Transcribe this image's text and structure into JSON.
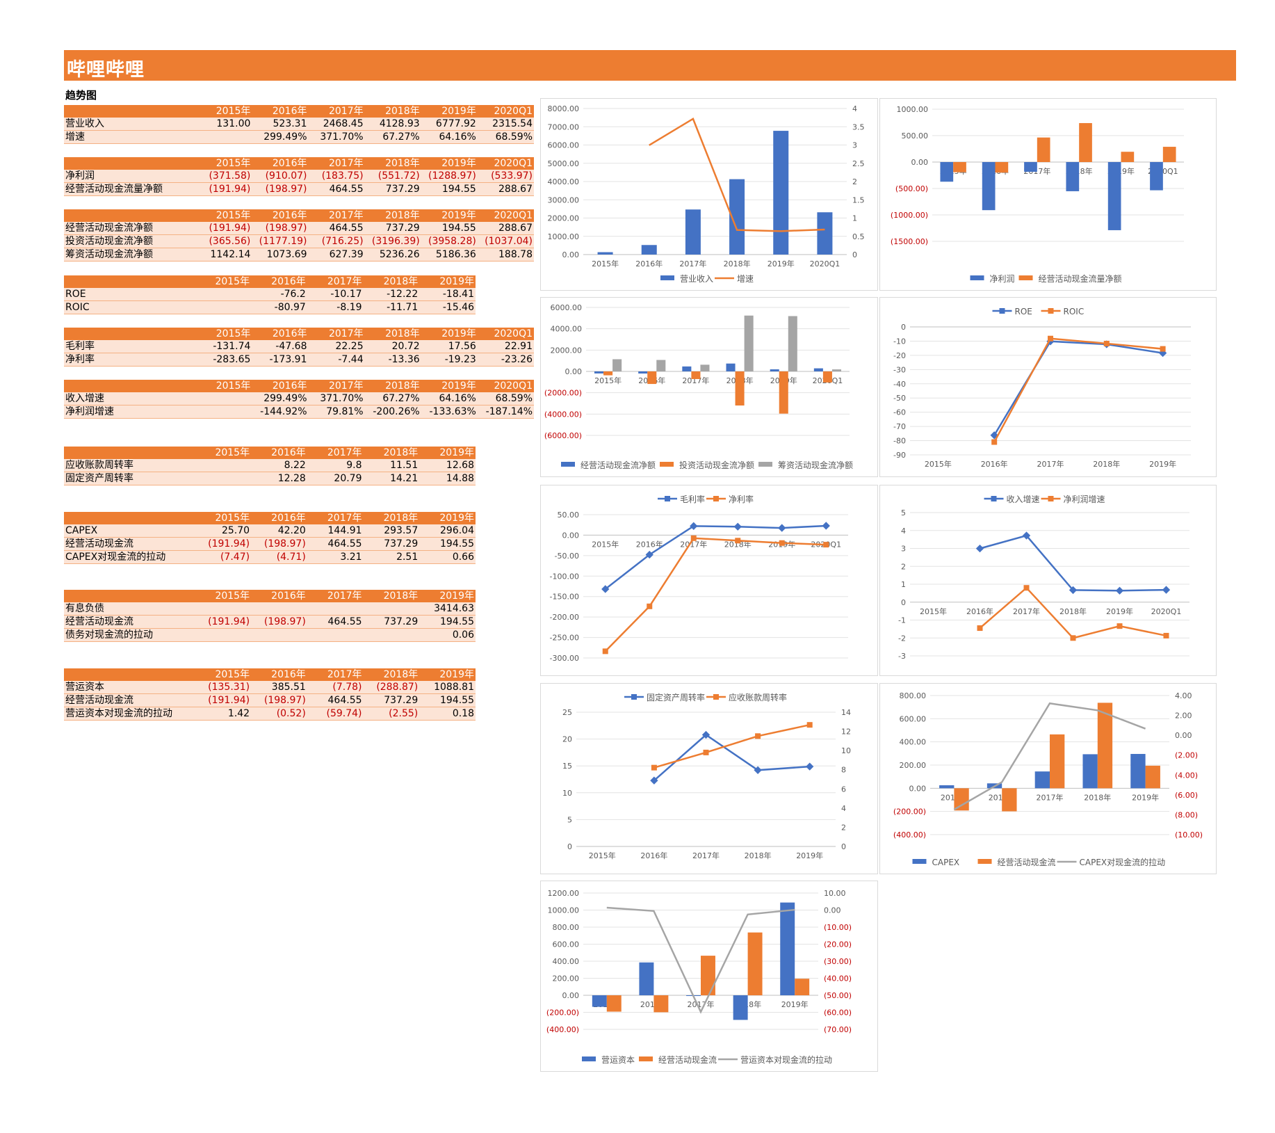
{
  "page": {
    "title": "哔哩哔哩",
    "subtitle": "趋势图"
  },
  "colors": {
    "accent": "#ED7D31",
    "light": "#FCE4D6",
    "blue": "#4472C4",
    "orange": "#ED7D31",
    "gray": "#A5A5A5",
    "neg": "#C00000"
  },
  "tables": [
    {
      "header": [
        "2015年",
        "2016年",
        "2017年",
        "2018年",
        "2019年",
        "2020Q1"
      ],
      "rows": [
        [
          "营业收入",
          "131.00",
          "523.31",
          "2468.45",
          "4128.93",
          "6777.92",
          "2315.54"
        ],
        [
          "增速",
          "",
          "299.49%",
          "371.70%",
          "67.27%",
          "64.16%",
          "68.59%"
        ]
      ]
    },
    {
      "header": [
        "2015年",
        "2016年",
        "2017年",
        "2018年",
        "2019年",
        "2020Q1"
      ],
      "rows": [
        [
          "净利润",
          "(371.58)",
          "(910.07)",
          "(183.75)",
          "(551.72)",
          "(1288.97)",
          "(533.97)"
        ],
        [
          "经营活动现金流量净额",
          "(191.94)",
          "(198.97)",
          "464.55",
          "737.29",
          "194.55",
          "288.67"
        ]
      ]
    },
    {
      "header": [
        "2015年",
        "2016年",
        "2017年",
        "2018年",
        "2019年",
        "2020Q1"
      ],
      "rows": [
        [
          "经营活动现金流净额",
          "(191.94)",
          "(198.97)",
          "464.55",
          "737.29",
          "194.55",
          "288.67"
        ],
        [
          "投资活动现金流净额",
          "(365.56)",
          "(1177.19)",
          "(716.25)",
          "(3196.39)",
          "(3958.28)",
          "(1037.04)"
        ],
        [
          "筹资活动现金流净额",
          "1142.14",
          "1073.69",
          "627.39",
          "5236.26",
          "5186.36",
          "188.78"
        ]
      ]
    },
    {
      "header": [
        "2015年",
        "2016年",
        "2017年",
        "2018年",
        "2019年"
      ],
      "rows": [
        [
          "ROE",
          "",
          "-76.2",
          "-10.17",
          "-12.22",
          "-18.41"
        ],
        [
          "ROIC",
          "",
          "-80.97",
          "-8.19",
          "-11.71",
          "-15.46"
        ]
      ]
    },
    {
      "header": [
        "2015年",
        "2016年",
        "2017年",
        "2018年",
        "2019年",
        "2020Q1"
      ],
      "rows": [
        [
          "毛利率",
          "-131.74",
          "-47.68",
          "22.25",
          "20.72",
          "17.56",
          "22.91"
        ],
        [
          "净利率",
          "-283.65",
          "-173.91",
          "-7.44",
          "-13.36",
          "-19.23",
          "-23.26"
        ]
      ]
    },
    {
      "header": [
        "2015年",
        "2016年",
        "2017年",
        "2018年",
        "2019年",
        "2020Q1"
      ],
      "rows": [
        [
          "收入增速",
          "",
          "299.49%",
          "371.70%",
          "67.27%",
          "64.16%",
          "68.59%"
        ],
        [
          "净利润增速",
          "",
          "-144.92%",
          "79.81%",
          "-200.26%",
          "-133.63%",
          "-187.14%"
        ]
      ]
    },
    {
      "header": [
        "2015年",
        "2016年",
        "2017年",
        "2018年",
        "2019年"
      ],
      "rows": [
        [
          "应收账款周转率",
          "",
          "8.22",
          "9.8",
          "11.51",
          "12.68"
        ],
        [
          "固定资产周转率",
          "",
          "12.28",
          "20.79",
          "14.21",
          "14.88"
        ]
      ]
    },
    {
      "header": [
        "2015年",
        "2016年",
        "2017年",
        "2018年",
        "2019年"
      ],
      "rows": [
        [
          "CAPEX",
          "25.70",
          "42.20",
          "144.91",
          "293.57",
          "296.04"
        ],
        [
          "经营活动现金流",
          "(191.94)",
          "(198.97)",
          "464.55",
          "737.29",
          "194.55"
        ],
        [
          "CAPEX对现金流的拉动",
          "(7.47)",
          "(4.71)",
          "3.21",
          "2.51",
          "0.66"
        ]
      ]
    },
    {
      "header": [
        "2015年",
        "2016年",
        "2017年",
        "2018年",
        "2019年"
      ],
      "rows": [
        [
          "有息负债",
          "",
          "",
          "",
          "",
          "3414.63"
        ],
        [
          "经营活动现金流",
          "(191.94)",
          "(198.97)",
          "464.55",
          "737.29",
          "194.55"
        ],
        [
          "债务对现金流的拉动",
          "",
          "",
          "",
          "",
          "0.06"
        ]
      ]
    },
    {
      "header": [
        "2015年",
        "2016年",
        "2017年",
        "2018年",
        "2019年"
      ],
      "rows": [
        [
          "营运资本",
          "(135.31)",
          "385.51",
          "(7.78)",
          "(288.87)",
          "1088.81"
        ],
        [
          "经营活动现金流",
          "(191.94)",
          "(198.97)",
          "464.55",
          "737.29",
          "194.55"
        ],
        [
          "营运资本对现金流的拉动",
          "1.42",
          "(0.52)",
          "(59.74)",
          "(2.55)",
          "0.18"
        ]
      ]
    }
  ],
  "chart_data": [
    {
      "type": "bar",
      "categories": [
        "2015年",
        "2016年",
        "2017年",
        "2018年",
        "2019年",
        "2020Q1"
      ],
      "series": [
        {
          "name": "营业收入",
          "kind": "bar",
          "axis": "left",
          "values": [
            131.0,
            523.31,
            2468.45,
            4128.93,
            6777.92,
            2315.54
          ]
        },
        {
          "name": "增速",
          "kind": "line",
          "axis": "right",
          "values": [
            null,
            2.9949,
            3.717,
            0.6727,
            0.6416,
            0.6859
          ]
        }
      ],
      "left_ticks": [
        "8000.00",
        "7000.00",
        "6000.00",
        "5000.00",
        "4000.00",
        "3000.00",
        "2000.00",
        "1000.00",
        "0.00"
      ],
      "ylim": [
        0,
        8000
      ],
      "right_ticks": [
        "4",
        "3.5",
        "3",
        "2.5",
        "2",
        "1.5",
        "1",
        "0.5",
        "0"
      ],
      "y2lim": [
        0,
        4
      ],
      "legend": "bottom"
    },
    {
      "type": "bar",
      "categories": [
        "2015年",
        "2016年",
        "2017年",
        "2018年",
        "2019年",
        "2020Q1"
      ],
      "series": [
        {
          "name": "净利润",
          "kind": "bar",
          "values": [
            -371.58,
            -910.07,
            -183.75,
            -551.72,
            -1288.97,
            -533.97
          ]
        },
        {
          "name": "经营活动现金流量净额",
          "kind": "bar",
          "values": [
            -191.94,
            -198.97,
            464.55,
            737.29,
            194.55,
            288.67
          ]
        }
      ],
      "left_ticks": [
        "1000.00",
        "500.00",
        "0.00",
        "(500.00)",
        "(1000.00)",
        "(1500.00)"
      ],
      "ylim": [
        -1500,
        1000
      ],
      "legend": "bottom"
    },
    {
      "type": "bar",
      "categories": [
        "2015年",
        "2016年",
        "2017年",
        "2018年",
        "2019年",
        "2020Q1"
      ],
      "series": [
        {
          "name": "经营活动现金流净额",
          "kind": "bar",
          "values": [
            -191.94,
            -198.97,
            464.55,
            737.29,
            194.55,
            288.67
          ]
        },
        {
          "name": "投资活动现金流净额",
          "kind": "bar",
          "values": [
            -365.56,
            -1177.19,
            -716.25,
            -3196.39,
            -3958.28,
            -1037.04
          ]
        },
        {
          "name": "筹资活动现金流净额",
          "kind": "bar",
          "values": [
            1142.14,
            1073.69,
            627.39,
            5236.26,
            5186.36,
            188.78
          ]
        }
      ],
      "left_ticks": [
        "6000.00",
        "4000.00",
        "2000.00",
        "0.00",
        "(2000.00)",
        "(4000.00)",
        "(6000.00)"
      ],
      "ylim": [
        -6000,
        6000
      ],
      "legend": "bottom"
    },
    {
      "type": "line",
      "categories": [
        "2015年",
        "2016年",
        "2017年",
        "2018年",
        "2019年"
      ],
      "series": [
        {
          "name": "ROE",
          "values": [
            null,
            -76.2,
            -10.17,
            -12.22,
            -18.41
          ]
        },
        {
          "name": "ROIC",
          "values": [
            null,
            -80.97,
            -8.19,
            -11.71,
            -15.46
          ]
        }
      ],
      "left_ticks": [
        "0",
        "-10",
        "-20",
        "-30",
        "-40",
        "-50",
        "-60",
        "-70",
        "-80",
        "-90"
      ],
      "ylim": [
        -90,
        0
      ],
      "legend": "top"
    },
    {
      "type": "line",
      "categories": [
        "2015年",
        "2016年",
        "2017年",
        "2018年",
        "2019年",
        "2020Q1"
      ],
      "series": [
        {
          "name": "毛利率",
          "values": [
            -131.74,
            -47.68,
            22.25,
            20.72,
            17.56,
            22.91
          ]
        },
        {
          "name": "净利率",
          "values": [
            -283.65,
            -173.91,
            -7.44,
            -13.36,
            -19.23,
            -23.26
          ]
        }
      ],
      "left_ticks": [
        "50.00",
        "0.00",
        "-50.00",
        "-100.00",
        "-150.00",
        "-200.00",
        "-250.00",
        "-300.00"
      ],
      "ylim": [
        -300,
        50
      ],
      "legend": "top"
    },
    {
      "type": "line",
      "categories": [
        "2015年",
        "2016年",
        "2017年",
        "2018年",
        "2019年",
        "2020Q1"
      ],
      "series": [
        {
          "name": "收入增速",
          "values": [
            null,
            2.9949,
            3.717,
            0.6727,
            0.6416,
            0.6859
          ]
        },
        {
          "name": "净利润增速",
          "values": [
            null,
            -1.4492,
            0.7981,
            -2.0026,
            -1.3363,
            -1.8714
          ]
        }
      ],
      "left_ticks": [
        "5",
        "4",
        "3",
        "2",
        "1",
        "0",
        "-1",
        "-2",
        "-3"
      ],
      "ylim": [
        -3,
        5
      ],
      "legend": "top"
    },
    {
      "type": "line",
      "categories": [
        "2015年",
        "2016年",
        "2017年",
        "2018年",
        "2019年"
      ],
      "series": [
        {
          "name": "固定资产周转率",
          "axis": "left",
          "values": [
            null,
            12.28,
            20.79,
            14.21,
            14.88
          ]
        },
        {
          "name": "应收账款周转率",
          "axis": "right",
          "values": [
            null,
            8.22,
            9.8,
            11.51,
            12.68
          ]
        }
      ],
      "left_ticks": [
        "25",
        "20",
        "15",
        "10",
        "5",
        "0"
      ],
      "ylim": [
        0,
        25
      ],
      "right_ticks": [
        "14",
        "12",
        "10",
        "8",
        "6",
        "4",
        "2",
        "0"
      ],
      "y2lim": [
        0,
        14
      ],
      "legend": "top"
    },
    {
      "type": "bar",
      "categories": [
        "2015年",
        "2016年",
        "2017年",
        "2018年",
        "2019年"
      ],
      "series": [
        {
          "name": "CAPEX",
          "kind": "bar",
          "axis": "left",
          "values": [
            25.7,
            42.2,
            144.91,
            293.57,
            296.04
          ]
        },
        {
          "name": "经营活动现金流",
          "kind": "bar",
          "axis": "left",
          "values": [
            -191.94,
            -198.97,
            464.55,
            737.29,
            194.55
          ]
        },
        {
          "name": "CAPEX对现金流的拉动",
          "kind": "line",
          "axis": "right",
          "values": [
            -7.47,
            -4.71,
            3.21,
            2.51,
            0.66
          ]
        }
      ],
      "left_ticks": [
        "800.00",
        "600.00",
        "400.00",
        "200.00",
        "0.00",
        "(200.00)",
        "(400.00)"
      ],
      "ylim": [
        -400,
        800
      ],
      "right_ticks": [
        "4.00",
        "2.00",
        "0.00",
        "(2.00)",
        "(4.00)",
        "(6.00)",
        "(8.00)",
        "(10.00)"
      ],
      "y2lim": [
        -10,
        4
      ],
      "legend": "bottom"
    },
    {
      "type": "bar",
      "categories": [
        "2015年",
        "2016年",
        "2017年",
        "2018年",
        "2019年"
      ],
      "series": [
        {
          "name": "营运资本",
          "kind": "bar",
          "axis": "left",
          "values": [
            -135.31,
            385.51,
            -7.78,
            -288.87,
            1088.81
          ]
        },
        {
          "name": "经营活动现金流",
          "kind": "bar",
          "axis": "left",
          "values": [
            -191.94,
            -198.97,
            464.55,
            737.29,
            194.55
          ]
        },
        {
          "name": "营运资本对现金流的拉动",
          "kind": "line",
          "axis": "right",
          "values": [
            1.42,
            -0.52,
            -59.74,
            -2.55,
            0.18
          ]
        }
      ],
      "left_ticks": [
        "1200.00",
        "1000.00",
        "800.00",
        "600.00",
        "400.00",
        "200.00",
        "0.00",
        "(200.00)",
        "(400.00)"
      ],
      "ylim": [
        -400,
        1200
      ],
      "right_ticks": [
        "10.00",
        "0.00",
        "(10.00)",
        "(20.00)",
        "(30.00)",
        "(40.00)",
        "(50.00)",
        "(60.00)",
        "(70.00)"
      ],
      "y2lim": [
        -70,
        10
      ],
      "legend": "bottom"
    }
  ]
}
